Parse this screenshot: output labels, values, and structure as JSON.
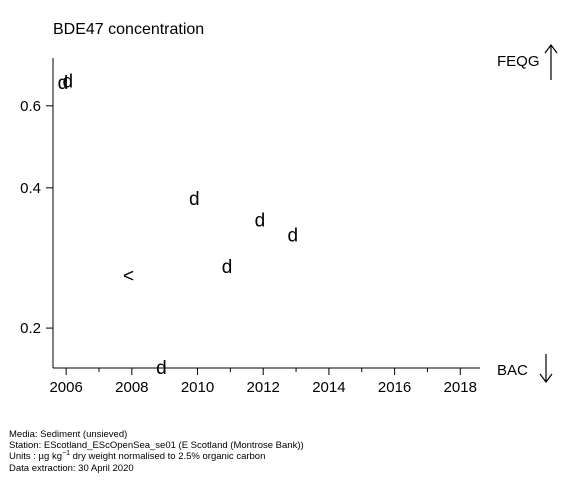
{
  "chart_data": {
    "type": "scatter",
    "title": "BDE47 concentration",
    "xlabel": "",
    "ylabel": "",
    "y_scale": "log",
    "xlim": [
      2005.6,
      2018.6
    ],
    "ylim": [
      0.165,
      0.76
    ],
    "x_ticks": [
      2006,
      2008,
      2010,
      2012,
      2014,
      2016,
      2018
    ],
    "x_tick_labels": [
      "2006",
      "2008",
      "2010",
      "2012",
      "2014",
      "2016",
      "2018"
    ],
    "y_ticks": [
      0.2,
      0.4,
      0.6
    ],
    "y_tick_labels": [
      "0.2",
      "0.4",
      "0.6"
    ],
    "points": [
      {
        "x": 2005.9,
        "y": 0.675,
        "marker": "d"
      },
      {
        "x": 2006.05,
        "y": 0.68,
        "marker": "d"
      },
      {
        "x": 2007.9,
        "y": 0.26,
        "marker": "<"
      },
      {
        "x": 2008.9,
        "y": 0.165,
        "marker": "d"
      },
      {
        "x": 2009.9,
        "y": 0.38,
        "marker": "d"
      },
      {
        "x": 2010.9,
        "y": 0.272,
        "marker": "d"
      },
      {
        "x": 2011.9,
        "y": 0.342,
        "marker": "d"
      },
      {
        "x": 2012.9,
        "y": 0.318,
        "marker": "d"
      }
    ],
    "reference_lines": [
      {
        "label": "FEQG",
        "direction": "up"
      },
      {
        "label": "BAC",
        "direction": "down"
      }
    ],
    "grid": false,
    "legend": "none"
  },
  "footer": {
    "media": "Media: Sediment (unsieved)",
    "station": "Station: EScotland_EScOpenSea_se01 (E Scotland (Montrose Bank))",
    "units_pre": "Units : µg kg",
    "units_sup": "−1",
    "units_post": " dry weight normalised to 2.5% organic carbon",
    "extraction": "Data extraction: 30 April 2020"
  }
}
